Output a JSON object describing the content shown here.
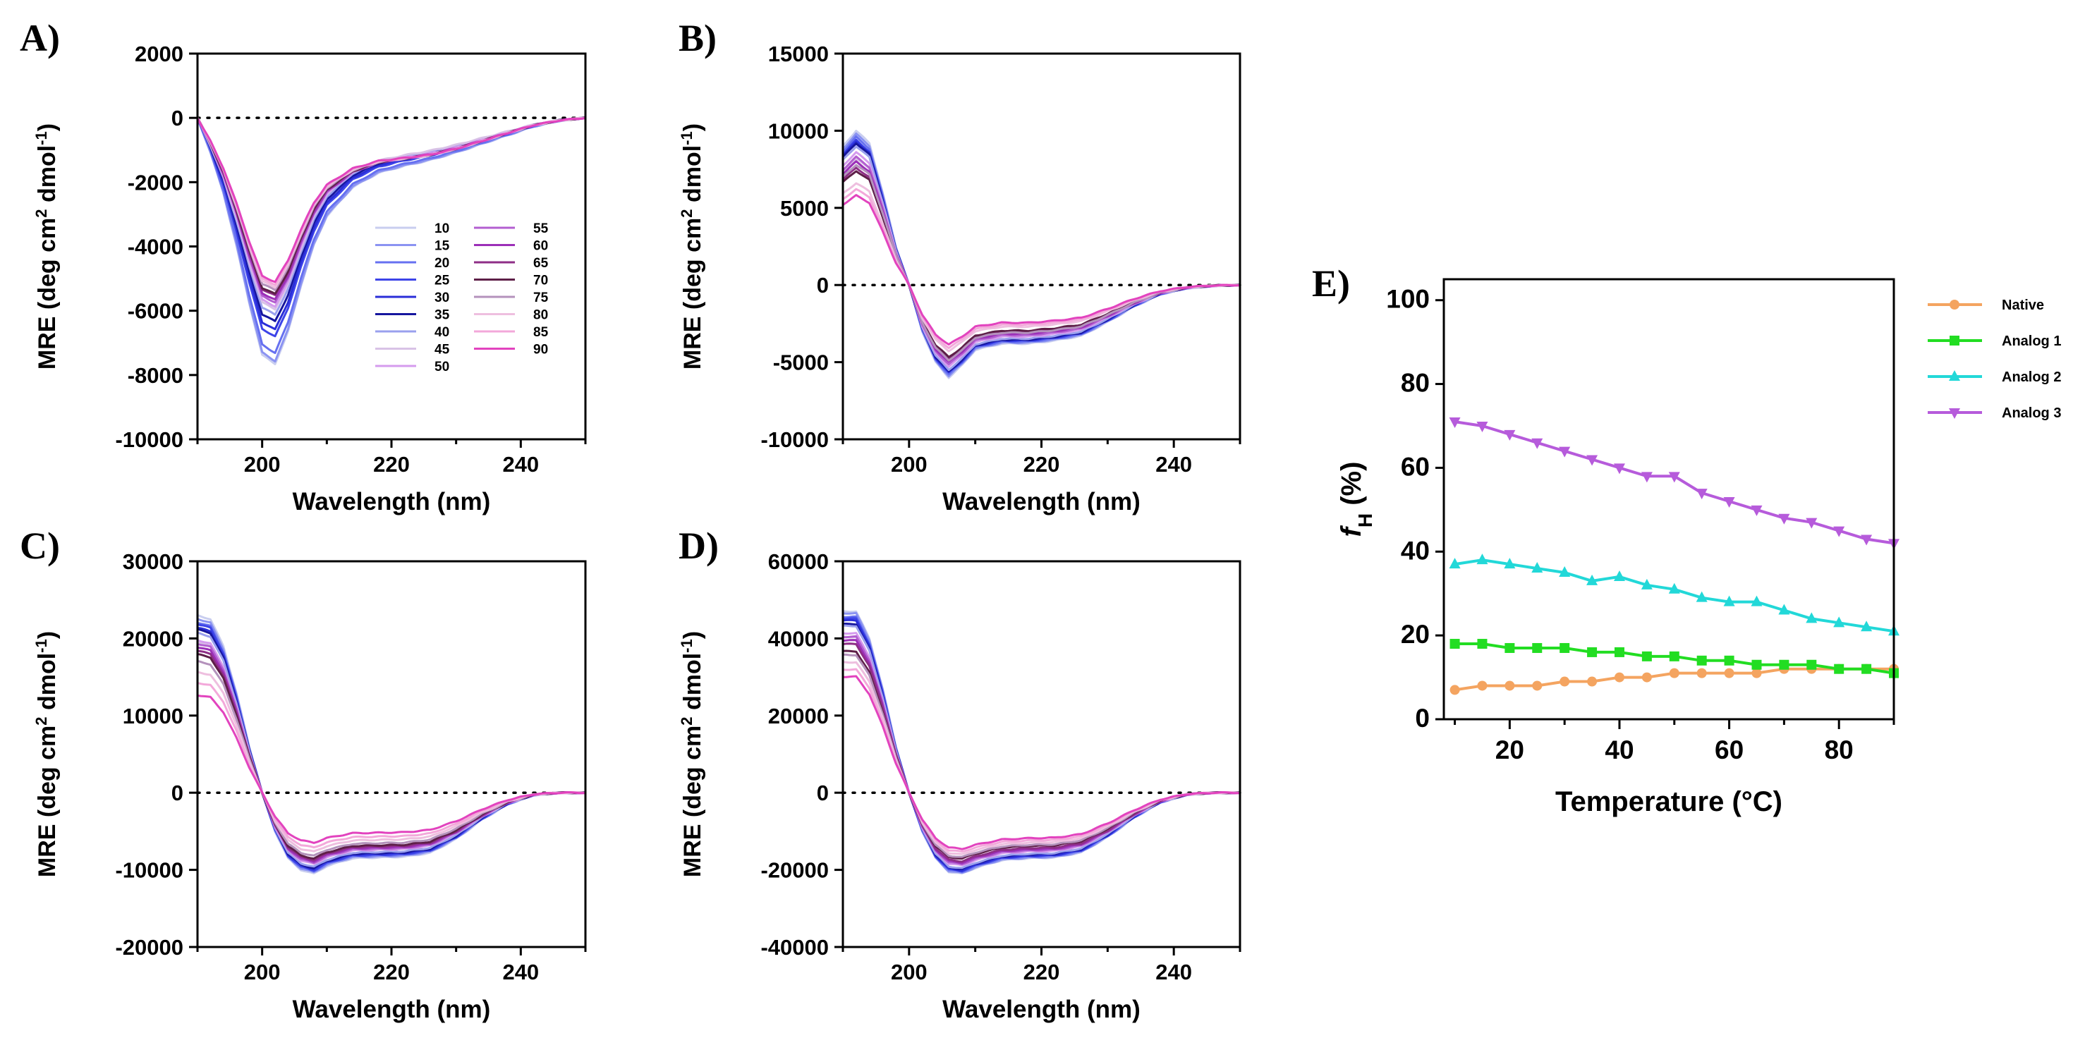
{
  "chart_data": [
    {
      "id": "A",
      "panel_label": "A)",
      "type": "line",
      "xlabel": "Wavelength (nm)",
      "ylabel_main": "MRE (deg cm",
      "ylabel_sup1": "2",
      "ylabel_mid": " dmol",
      "ylabel_sup2": "-1",
      "ylabel_end": ")",
      "xlim": [
        190,
        250
      ],
      "ylim": [
        -10000,
        2000
      ],
      "xticks": [
        200,
        220,
        240
      ],
      "yticks": [
        2000,
        0,
        -2000,
        -4000,
        -6000,
        -8000,
        -10000
      ],
      "xtick_labels": [
        "200",
        "220",
        "240"
      ],
      "ytick_labels": [
        "2000",
        "0",
        "-2000",
        "-4000",
        "-6000",
        "-8000",
        "-10000"
      ],
      "zero_line": true,
      "legend": {
        "placement": "inside-lower-right",
        "columns": 2
      },
      "profile": {
        "x": [
          190,
          192,
          194,
          196,
          198,
          200,
          202,
          204,
          206,
          208,
          210,
          214,
          218,
          222,
          226,
          230,
          234,
          238,
          242,
          246,
          250
        ],
        "a": [
          0,
          -0.6,
          -1.3,
          -2.2,
          -3.2,
          -4.1,
          -4.25,
          -3.7,
          -2.9,
          -2.2,
          -1.7,
          -1.2,
          -0.95,
          -0.83,
          -0.73,
          -0.6,
          -0.45,
          -0.3,
          -0.15,
          -0.05,
          0
        ],
        "d": [
          0,
          0,
          0,
          0,
          0,
          0,
          0,
          0,
          0,
          0,
          0.05,
          0.15,
          0.22,
          0.28,
          0.3,
          0.27,
          0.2,
          0.12,
          0.05,
          0.02,
          0
        ]
      },
      "series": [
        {
          "name": "10",
          "amp": 1800,
          "delta": 0
        },
        {
          "name": "15",
          "amp": 1780,
          "delta": 0
        },
        {
          "name": "20",
          "amp": 1720,
          "delta": 0
        },
        {
          "name": "25",
          "amp": 1600,
          "delta": 0
        },
        {
          "name": "30",
          "amp": 1550,
          "delta": 0
        },
        {
          "name": "35",
          "amp": 1490,
          "delta": 0
        },
        {
          "name": "40",
          "amp": 1440,
          "delta": 0
        },
        {
          "name": "45",
          "amp": 1400,
          "delta": 0
        },
        {
          "name": "50",
          "amp": 1380,
          "delta": 200
        },
        {
          "name": "55",
          "amp": 1350,
          "delta": 300
        },
        {
          "name": "60",
          "amp": 1330,
          "delta": 350
        },
        {
          "name": "65",
          "amp": 1300,
          "delta": 400
        },
        {
          "name": "70",
          "amp": 1290,
          "delta": 450
        },
        {
          "name": "75",
          "amp": 1260,
          "delta": 500
        },
        {
          "name": "80",
          "amp": 1240,
          "delta": 520
        },
        {
          "name": "85",
          "amp": 1220,
          "delta": 540
        },
        {
          "name": "90",
          "amp": 1200,
          "delta": 560
        }
      ]
    },
    {
      "id": "B",
      "panel_label": "B)",
      "type": "line",
      "xlabel": "Wavelength (nm)",
      "ylabel_main": "MRE (deg cm",
      "ylabel_sup1": "2",
      "ylabel_mid": " dmol",
      "ylabel_sup2": "-1",
      "ylabel_end": ")",
      "xlim": [
        190,
        250
      ],
      "ylim": [
        -10000,
        15000
      ],
      "xticks": [
        200,
        220,
        240
      ],
      "yticks": [
        15000,
        10000,
        5000,
        0,
        -5000,
        -10000
      ],
      "xtick_labels": [
        "200",
        "220",
        "240"
      ],
      "ytick_labels": [
        "15000",
        "10000",
        "5000",
        "0",
        "-5000",
        "-10000"
      ],
      "zero_line": true,
      "profile": {
        "x": [
          190,
          192,
          194,
          196,
          198,
          200,
          202,
          204,
          206,
          208,
          210,
          214,
          218,
          222,
          226,
          230,
          234,
          238,
          242,
          246,
          250
        ],
        "a": [
          9000,
          10000,
          9200,
          6000,
          2500,
          0,
          -3000,
          -5000,
          -6000,
          -5200,
          -4200,
          -3800,
          -3800,
          -3600,
          -3300,
          -2400,
          -1400,
          -600,
          -200,
          -50,
          0
        ],
        "b": [
          1.0,
          0.98,
          0.95,
          0.92,
          0.89,
          0.85,
          0.8,
          0.75,
          0.72,
          0.7,
          0.68,
          0.66,
          0.65,
          0.66,
          0.67,
          0.69,
          0.72,
          0.75,
          0.8,
          0.85,
          0.9
        ]
      },
      "series": [
        {
          "name": "10",
          "s": 1.0
        },
        {
          "name": "15",
          "s": 0.98
        },
        {
          "name": "20",
          "s": 0.96
        },
        {
          "name": "25",
          "s": 0.94
        },
        {
          "name": "30",
          "s": 0.93
        },
        {
          "name": "35",
          "s": 0.92
        },
        {
          "name": "40",
          "s": 0.9
        },
        {
          "name": "45",
          "s": 0.82
        },
        {
          "name": "50",
          "s": 0.86
        },
        {
          "name": "55",
          "s": 0.83
        },
        {
          "name": "60",
          "s": 0.8
        },
        {
          "name": "65",
          "s": 0.76
        },
        {
          "name": "70",
          "s": 0.74
        },
        {
          "name": "75",
          "s": 0.78
        },
        {
          "name": "80",
          "s": 0.66
        },
        {
          "name": "85",
          "s": 0.62
        },
        {
          "name": "90",
          "s": 0.58
        }
      ]
    },
    {
      "id": "C",
      "panel_label": "C)",
      "type": "line",
      "xlabel": "Wavelength (nm)",
      "ylabel_main": "MRE (deg cm",
      "ylabel_sup1": "2",
      "ylabel_mid": " dmol",
      "ylabel_sup2": "-1",
      "ylabel_end": ")",
      "xlim": [
        190,
        250
      ],
      "ylim": [
        -20000,
        30000
      ],
      "xticks": [
        200,
        220,
        240
      ],
      "yticks": [
        30000,
        20000,
        10000,
        0,
        -10000,
        -20000
      ],
      "xtick_labels": [
        "200",
        "220",
        "240"
      ],
      "ytick_labels": [
        "30000",
        "20000",
        "10000",
        "0",
        "-10000",
        "-20000"
      ],
      "zero_line": true,
      "profile": {
        "x": [
          190,
          192,
          194,
          196,
          198,
          200,
          202,
          204,
          206,
          208,
          210,
          214,
          218,
          222,
          226,
          230,
          234,
          238,
          242,
          246,
          250
        ],
        "a": [
          23000,
          22500,
          19000,
          13000,
          6000,
          0,
          -5000,
          -8500,
          -10000,
          -10500,
          -9500,
          -8500,
          -8400,
          -8300,
          -7800,
          -6000,
          -3500,
          -1500,
          -300,
          0,
          0
        ],
        "b": [
          1.0,
          0.98,
          0.95,
          0.92,
          0.89,
          0.85,
          0.82,
          0.8,
          0.78,
          0.76,
          0.73,
          0.71,
          0.69,
          0.68,
          0.68,
          0.7,
          0.73,
          0.78,
          0.85,
          0.9,
          0.95
        ]
      },
      "series": [
        {
          "name": "10",
          "s": 1.0
        },
        {
          "name": "15",
          "s": 0.98
        },
        {
          "name": "20",
          "s": 0.96
        },
        {
          "name": "25",
          "s": 0.95
        },
        {
          "name": "30",
          "s": 0.93
        },
        {
          "name": "35",
          "s": 0.92
        },
        {
          "name": "40",
          "s": 0.9
        },
        {
          "name": "45",
          "s": 0.85
        },
        {
          "name": "50",
          "s": 0.86
        },
        {
          "name": "55",
          "s": 0.84
        },
        {
          "name": "60",
          "s": 0.82
        },
        {
          "name": "65",
          "s": 0.8
        },
        {
          "name": "70",
          "s": 0.78
        },
        {
          "name": "75",
          "s": 0.74
        },
        {
          "name": "80",
          "s": 0.68
        },
        {
          "name": "85",
          "s": 0.62
        },
        {
          "name": "90",
          "s": 0.55
        }
      ]
    },
    {
      "id": "D",
      "panel_label": "D)",
      "type": "line",
      "xlabel": "Wavelength (nm)",
      "ylabel_main": "MRE (deg cm",
      "ylabel_sup1": "2",
      "ylabel_mid": " dmol",
      "ylabel_sup2": "-1",
      "ylabel_end": ")",
      "xlim": [
        190,
        250
      ],
      "ylim": [
        -40000,
        60000
      ],
      "xticks": [
        200,
        220,
        240
      ],
      "yticks": [
        60000,
        40000,
        20000,
        0,
        -20000,
        -40000
      ],
      "xtick_labels": [
        "200",
        "220",
        "240"
      ],
      "ytick_labels": [
        "60000",
        "40000",
        "20000",
        "0",
        "-20000",
        "-40000"
      ],
      "zero_line": true,
      "profile": {
        "x": [
          190,
          192,
          194,
          196,
          198,
          200,
          202,
          204,
          206,
          208,
          210,
          214,
          218,
          222,
          226,
          230,
          234,
          238,
          242,
          246,
          250
        ],
        "a": [
          47000,
          47000,
          40000,
          27000,
          12000,
          0,
          -10000,
          -17000,
          -20500,
          -21000,
          -19500,
          -17500,
          -17000,
          -16800,
          -15500,
          -11500,
          -6500,
          -2500,
          -500,
          0,
          0
        ],
        "b": [
          1.0,
          0.98,
          0.95,
          0.92,
          0.89,
          0.86,
          0.83,
          0.8,
          0.78,
          0.76,
          0.74,
          0.72,
          0.7,
          0.7,
          0.71,
          0.73,
          0.76,
          0.8,
          0.86,
          0.9,
          0.95
        ]
      },
      "series": [
        {
          "name": "10",
          "s": 1.0
        },
        {
          "name": "15",
          "s": 0.99
        },
        {
          "name": "20",
          "s": 0.97
        },
        {
          "name": "25",
          "s": 0.96
        },
        {
          "name": "30",
          "s": 0.95
        },
        {
          "name": "35",
          "s": 0.93
        },
        {
          "name": "40",
          "s": 0.92
        },
        {
          "name": "45",
          "s": 0.86
        },
        {
          "name": "50",
          "s": 0.88
        },
        {
          "name": "55",
          "s": 0.86
        },
        {
          "name": "60",
          "s": 0.84
        },
        {
          "name": "65",
          "s": 0.82
        },
        {
          "name": "70",
          "s": 0.78
        },
        {
          "name": "75",
          "s": 0.76
        },
        {
          "name": "80",
          "s": 0.72
        },
        {
          "name": "85",
          "s": 0.68
        },
        {
          "name": "90",
          "s": 0.64
        }
      ]
    },
    {
      "id": "E",
      "panel_label": "E)",
      "type": "line",
      "xlabel": "Temperature (°C)",
      "ylabel_f": "f",
      "ylabel_sub": "H",
      "ylabel_rest": " (%)",
      "xlim": [
        8,
        90
      ],
      "ylim": [
        0,
        105
      ],
      "xticks": [
        20,
        40,
        60,
        80
      ],
      "yticks": [
        100,
        80,
        60,
        40,
        20,
        0
      ],
      "xtick_labels": [
        "20",
        "40",
        "60",
        "80"
      ],
      "ytick_labels": [
        "100",
        "80",
        "60",
        "40",
        "20",
        "0"
      ],
      "x": [
        10,
        15,
        20,
        25,
        30,
        35,
        40,
        45,
        50,
        55,
        60,
        65,
        70,
        75,
        80,
        85,
        90
      ],
      "series": [
        {
          "name": "Native",
          "color": "#F4A460",
          "marker": "circle",
          "values": [
            7,
            8,
            8,
            8,
            9,
            9,
            10,
            10,
            11,
            11,
            11,
            11,
            12,
            12,
            12,
            12,
            12
          ]
        },
        {
          "name": "Analog 1",
          "color": "#22DD22",
          "marker": "square",
          "values": [
            18,
            18,
            17,
            17,
            17,
            16,
            16,
            15,
            15,
            14,
            14,
            13,
            13,
            13,
            12,
            12,
            11
          ]
        },
        {
          "name": "Analog 2",
          "color": "#22D8D8",
          "marker": "triangle-up",
          "values": [
            37,
            38,
            37,
            36,
            35,
            33,
            34,
            32,
            31,
            29,
            28,
            28,
            26,
            24,
            23,
            22,
            21
          ]
        },
        {
          "name": "Analog 3",
          "color": "#B65BDB",
          "marker": "triangle-down",
          "values": [
            71,
            70,
            68,
            66,
            64,
            62,
            60,
            58,
            58,
            54,
            52,
            50,
            48,
            47,
            45,
            43,
            42
          ]
        }
      ]
    }
  ],
  "temperature_colors": [
    "#C9CEEF",
    "#8B93F2",
    "#6670F0",
    "#3D44E8",
    "#2A2ED8",
    "#16169E",
    "#9AA0EE",
    "#D8C2E6",
    "#D59BEE",
    "#B35FD0",
    "#9C2FB8",
    "#8E2E86",
    "#5E1F48",
    "#B492BC",
    "#EEBFDF",
    "#F3A8DA",
    "#E243BE"
  ]
}
